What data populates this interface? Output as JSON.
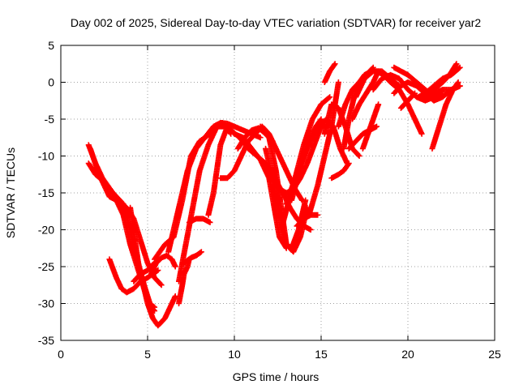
{
  "chart_data": {
    "type": "scatter",
    "title": "Day 002 of 2025, Sidereal Day-to-day VTEC variation (SDTVAR) for receiver yar2",
    "xlabel": "GPS time / hours",
    "ylabel": "SDTVAR / TECUs",
    "xlim": [
      0,
      25
    ],
    "ylim": [
      -35,
      5
    ],
    "xticks": [
      0,
      5,
      10,
      15,
      20,
      25
    ],
    "yticks": [
      -35,
      -30,
      -25,
      -20,
      -15,
      -10,
      -5,
      0,
      5
    ],
    "grid": true,
    "marker": "+",
    "color": "#ff0000",
    "series": [
      {
        "x": [
          1.6,
          2.0,
          2.5,
          3.0,
          3.6,
          4.0,
          4.4,
          4.8,
          5.2,
          5.4
        ],
        "y": [
          -11,
          -12.5,
          -13.5,
          -15,
          -16.5,
          -20,
          -24,
          -27.5,
          -30.5,
          -31
        ]
      },
      {
        "x": [
          1.6,
          2.0,
          2.4,
          3.0,
          3.6,
          4.0,
          4.4,
          4.8,
          5.1,
          5.4
        ],
        "y": [
          -8.5,
          -11,
          -13,
          -15,
          -18,
          -22,
          -25,
          -28,
          -30,
          -30.5
        ]
      },
      {
        "x": [
          1.7,
          2.2,
          2.8,
          3.2,
          3.8,
          4.2,
          4.6,
          5.0,
          5.4,
          5.8
        ],
        "y": [
          -9,
          -12.5,
          -15.5,
          -16,
          -17,
          -18.5,
          -21.5,
          -24.5,
          -26.5,
          -27.5
        ]
      },
      {
        "x": [
          2.8,
          3.2,
          3.5,
          3.8,
          4.2,
          4.6,
          5.0,
          5.3,
          5.6
        ],
        "y": [
          -24,
          -26.5,
          -28,
          -28.5,
          -28,
          -27,
          -26.5,
          -26,
          -25.5
        ]
      },
      {
        "x": [
          4.0,
          4.5,
          5.0,
          5.3,
          5.6,
          6.0,
          6.3,
          6.6
        ],
        "y": [
          -17,
          -25,
          -30,
          -32,
          -33,
          -32,
          -30.5,
          -29
        ]
      },
      {
        "x": [
          4.2,
          4.6,
          5.0,
          5.4,
          5.7
        ],
        "y": [
          -27,
          -26,
          -25.5,
          -24.5,
          -24
        ]
      },
      {
        "x": [
          5.2,
          5.5,
          5.8,
          6.1,
          6.4,
          6.6
        ],
        "y": [
          -26,
          -24.5,
          -23.8,
          -23.5,
          -24,
          -25
        ]
      },
      {
        "x": [
          6.8,
          7.0,
          7.1,
          7.3,
          7.4
        ],
        "y": [
          -30,
          -27.5,
          -26,
          -25,
          -24
        ]
      },
      {
        "x": [
          5.4,
          6.0,
          6.5,
          7.0,
          7.5,
          8.0,
          8.6,
          9.0,
          9.3
        ],
        "y": [
          -24,
          -22,
          -21,
          -16,
          -10,
          -8,
          -7,
          -6,
          -5.5
        ]
      },
      {
        "x": [
          6.2,
          6.8,
          7.3,
          7.8,
          8.3,
          8.8,
          9.2,
          9.6,
          10.0,
          10.5,
          11.0,
          11.5
        ],
        "y": [
          -23,
          -17,
          -12,
          -9,
          -7.5,
          -6,
          -5.5,
          -5.6,
          -6,
          -6.5,
          -7,
          -7.5
        ]
      },
      {
        "x": [
          6.8,
          7.2,
          7.6,
          8.0,
          8.5,
          9.0,
          9.5,
          9.8
        ],
        "y": [
          -27,
          -22,
          -17,
          -12,
          -8.5,
          -6,
          -6,
          -7
        ]
      },
      {
        "x": [
          7.1,
          7.5,
          7.8,
          8.1
        ],
        "y": [
          -24.5,
          -23.8,
          -23.5,
          -23
        ]
      },
      {
        "x": [
          7.4,
          7.8,
          8.2,
          8.6
        ],
        "y": [
          -19,
          -18.5,
          -18.5,
          -19
        ]
      },
      {
        "x": [
          8.5,
          8.8,
          9.2,
          9.6
        ],
        "y": [
          -18,
          -15,
          -8.5,
          -6
        ]
      },
      {
        "x": [
          9.2,
          9.6,
          10.0,
          10.4,
          10.8,
          11.2,
          11.6,
          12.0,
          12.5,
          13.0,
          13.5,
          13.9
        ],
        "y": [
          -13,
          -13,
          -12,
          -10,
          -8,
          -7,
          -6,
          -7,
          -9.5,
          -12,
          -14.5,
          -16
        ]
      },
      {
        "x": [
          9.3,
          9.8,
          10.3,
          10.8,
          11.3,
          11.8,
          12.3,
          12.8,
          13.2,
          13.6,
          14.0,
          14.4
        ],
        "y": [
          -5.5,
          -6.5,
          -7.5,
          -9,
          -10,
          -11,
          -13,
          -15,
          -17,
          -18.5,
          -19.5,
          -20
        ]
      },
      {
        "x": [
          9.6,
          10.0,
          10.5,
          11.0,
          11.5,
          12.0,
          12.3,
          12.6,
          13.0
        ],
        "y": [
          -6,
          -7,
          -7.5,
          -9,
          -10.5,
          -13,
          -17,
          -21,
          -22.5
        ]
      },
      {
        "x": [
          10.2,
          10.6,
          11.0,
          11.4,
          11.8,
          12.2
        ],
        "y": [
          -9,
          -7.5,
          -6.5,
          -6.2,
          -7,
          -8
        ]
      },
      {
        "x": [
          11.5,
          12.0,
          12.4,
          12.7,
          13.0,
          13.3,
          13.7,
          14.1
        ],
        "y": [
          -6,
          -7.5,
          -12,
          -17,
          -22,
          -22.5,
          -20,
          -16
        ]
      },
      {
        "x": [
          11.8,
          12.2,
          12.6,
          13.0,
          13.4,
          13.8,
          14.2
        ],
        "y": [
          -9,
          -13,
          -18,
          -22,
          -23,
          -21,
          -17
        ]
      },
      {
        "x": [
          12.2,
          12.6,
          13.0,
          13.4,
          13.8,
          14.2,
          14.6,
          15.0
        ],
        "y": [
          -12,
          -14.5,
          -15,
          -14.5,
          -13,
          -11,
          -8.5,
          -6
        ]
      },
      {
        "x": [
          12.7,
          13.2,
          13.7,
          14.2,
          14.6,
          15.0,
          15.4
        ],
        "y": [
          -20,
          -15.5,
          -12,
          -9,
          -7,
          -6,
          -6
        ]
      },
      {
        "x": [
          13.0,
          13.5,
          14.0,
          14.5,
          15.0,
          15.5
        ],
        "y": [
          -16.5,
          -13,
          -8.5,
          -5,
          -3,
          -2
        ]
      },
      {
        "x": [
          13.3,
          13.8,
          14.3,
          14.7,
          15.0
        ],
        "y": [
          -16,
          -11.5,
          -8,
          -6,
          -5
        ]
      },
      {
        "x": [
          13.6,
          14.0,
          14.4,
          14.8
        ],
        "y": [
          -19.5,
          -18.5,
          -18,
          -18
        ]
      },
      {
        "x": [
          14.3,
          14.8,
          15.2,
          15.6,
          15.8,
          16.0
        ],
        "y": [
          -18,
          -14,
          -10,
          -6,
          -3,
          0
        ]
      },
      {
        "x": [
          14.9,
          15.3,
          15.7,
          16.1,
          16.5
        ],
        "y": [
          -6,
          -5,
          -6,
          -9,
          -11
        ]
      },
      {
        "x": [
          15.2,
          15.6,
          16.0,
          16.4,
          16.8,
          17.2
        ],
        "y": [
          -7,
          -3,
          -3.5,
          -6,
          -9,
          -10
        ]
      },
      {
        "x": [
          15.6,
          16.0,
          16.3,
          16.6
        ],
        "y": [
          -13,
          -12.5,
          -12,
          -11
        ]
      },
      {
        "x": [
          15.2,
          15.5,
          15.8
        ],
        "y": [
          0,
          1.5,
          2.5
        ]
      },
      {
        "x": [
          16.0,
          16.4,
          16.8,
          17.2,
          17.6,
          18.0
        ],
        "y": [
          -6,
          -3,
          -1,
          0,
          1,
          2
        ]
      },
      {
        "x": [
          16.3,
          16.6,
          16.9,
          17.2,
          17.5,
          17.9
        ],
        "y": [
          -9,
          -5,
          -2,
          0,
          1,
          1.5
        ]
      },
      {
        "x": [
          16.6,
          17.0,
          17.4,
          17.8,
          18.2
        ],
        "y": [
          -9,
          -8,
          -7,
          -6.5,
          -6
        ]
      },
      {
        "x": [
          16.8,
          17.2,
          17.6,
          18.0,
          18.3
        ],
        "y": [
          -5,
          -3,
          -1.5,
          0,
          1.5
        ]
      },
      {
        "x": [
          17.0,
          17.5,
          18.0,
          18.5,
          19.0,
          19.5
        ],
        "y": [
          -2,
          0.5,
          1.5,
          1.5,
          0.5,
          -0.5
        ]
      },
      {
        "x": [
          17.4,
          17.7,
          18.0,
          18.3
        ],
        "y": [
          -9,
          -7,
          -5,
          -3
        ]
      },
      {
        "x": [
          18.0,
          18.5,
          19.0,
          19.5,
          20.0,
          20.5,
          21.0,
          21.5
        ],
        "y": [
          -1,
          0.5,
          1,
          0.5,
          -1,
          -2,
          -2.5,
          -2
        ]
      },
      {
        "x": [
          18.2,
          18.6,
          19.0,
          19.5,
          20.0,
          20.4,
          20.8
        ],
        "y": [
          1.5,
          1,
          0,
          -1,
          -3,
          -5,
          -7
        ]
      },
      {
        "x": [
          19.2,
          19.6,
          20.0,
          20.5,
          21.0,
          21.5,
          22.0,
          22.5,
          23.0
        ],
        "y": [
          -1.5,
          -0.5,
          0,
          -0.5,
          -1.5,
          -2.5,
          -2,
          -1,
          -0.5
        ]
      },
      {
        "x": [
          19.2,
          19.6,
          20.0,
          20.5,
          21.0,
          21.5,
          22.0
        ],
        "y": [
          2,
          1.5,
          1,
          0,
          -1,
          -2,
          -1.5
        ]
      },
      {
        "x": [
          19.6,
          20.0,
          20.4
        ],
        "y": [
          -3.5,
          -2.5,
          -1.5
        ]
      },
      {
        "x": [
          20.6,
          21.0,
          21.5,
          22.0,
          22.5,
          23.0
        ],
        "y": [
          -2,
          -1.5,
          -0.5,
          0.5,
          1,
          2
        ]
      },
      {
        "x": [
          21.0,
          21.5,
          22.0,
          22.4,
          22.8
        ],
        "y": [
          -2,
          -1,
          0,
          1,
          2.5
        ]
      },
      {
        "x": [
          21.4,
          21.8,
          22.2,
          22.6,
          22.9
        ],
        "y": [
          -9,
          -6,
          -3,
          -1,
          0
        ]
      },
      {
        "x": [
          21.0,
          21.5,
          22.0,
          22.5,
          23.0
        ],
        "y": [
          -2,
          -1.5,
          -1,
          -1,
          -0.5
        ]
      }
    ]
  }
}
